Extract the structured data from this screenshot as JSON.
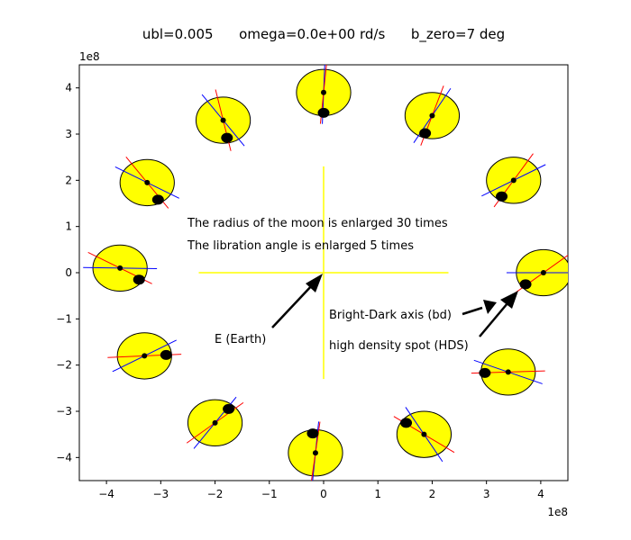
{
  "chart_data": {
    "type": "scatter",
    "title": "ubl=0.005      omega=0.0e+00 rd/s      b_zero=7 deg",
    "x_offset_label": "1e8",
    "y_offset_label": "1e8",
    "xlim": [
      -4.5,
      4.5
    ],
    "ylim": [
      -4.5,
      4.5
    ],
    "x_ticks": [
      -4,
      -3,
      -2,
      -1,
      0,
      1,
      2,
      3,
      4
    ],
    "y_ticks": [
      -4,
      -3,
      -2,
      -1,
      0,
      1,
      2,
      3,
      4
    ],
    "colors": {
      "moon_fill": "#ffff00",
      "bd_axis": "#ff0000",
      "libration_axis": "#0000ff",
      "earth_cross": "#ffff00",
      "spot": "#000000"
    },
    "earth_cross": {
      "x": [
        -2.3,
        2.3
      ],
      "y": [
        -2.3,
        2.3
      ]
    },
    "moon_radius": 0.5,
    "moons": [
      {
        "x": 4.05,
        "y": 0.0,
        "spot": [
          3.72,
          -0.25
        ],
        "red_deg": 40,
        "blue_deg": 0
      },
      {
        "x": 3.5,
        "y": 2.0,
        "spot": [
          3.28,
          1.65
        ],
        "red_deg": 58,
        "blue_deg": 30
      },
      {
        "x": 2.0,
        "y": 3.4,
        "spot": [
          1.87,
          3.02
        ],
        "red_deg": 72,
        "blue_deg": 60
      },
      {
        "x": 0.0,
        "y": 3.9,
        "spot": [
          0.0,
          3.46
        ],
        "red_deg": 85,
        "blue_deg": 88
      },
      {
        "x": -1.85,
        "y": 3.3,
        "spot": [
          -1.78,
          2.92
        ],
        "red_deg": -78,
        "blue_deg": -55
      },
      {
        "x": -3.25,
        "y": 1.95,
        "spot": [
          -3.05,
          1.58
        ],
        "red_deg": -55,
        "blue_deg": -30
      },
      {
        "x": -3.75,
        "y": 0.1,
        "spot": [
          -3.4,
          -0.15
        ],
        "red_deg": -30,
        "blue_deg": -1
      },
      {
        "x": -3.3,
        "y": -1.8,
        "spot": [
          -2.9,
          -1.78
        ],
        "red_deg": 3,
        "blue_deg": 30
      },
      {
        "x": -2.0,
        "y": -3.25,
        "spot": [
          -1.75,
          -2.95
        ],
        "red_deg": 40,
        "blue_deg": 55
      },
      {
        "x": -0.15,
        "y": -3.9,
        "spot": [
          -0.2,
          -3.48
        ],
        "red_deg": 83,
        "blue_deg": 85
      },
      {
        "x": 1.85,
        "y": -3.5,
        "spot": [
          1.52,
          -3.25
        ],
        "red_deg": -35,
        "blue_deg": -60
      },
      {
        "x": 3.4,
        "y": -2.15,
        "spot": [
          2.97,
          -2.17
        ],
        "red_deg": 2,
        "blue_deg": -22
      }
    ],
    "annotations": {
      "radius_note": "The radius of the moon is enlarged 30 times",
      "libration_note": "The libration angle is enlarged 5 times",
      "earth_label": "E (Earth)",
      "bd_label": "Bright-Dark axis (bd)",
      "hds_label": "high density spot (HDS)"
    }
  }
}
